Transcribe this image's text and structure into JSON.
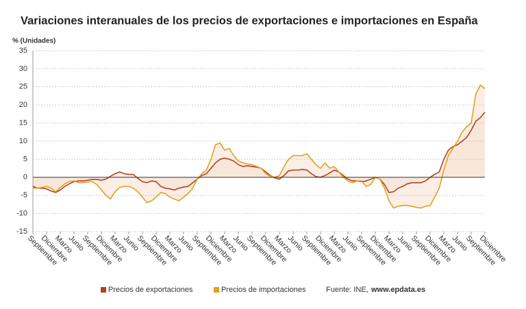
{
  "chart_data": {
    "type": "line",
    "title": "Variaciones interanuales de los precios de exportaciones e importaciones en España",
    "y_label": "% (Unidades)",
    "categories": [
      "Septiembre",
      null,
      null,
      "Diciembre",
      null,
      null,
      "Marzo",
      null,
      null,
      "Junio",
      null,
      null,
      "Septiembre",
      null,
      null,
      "Diciembre",
      null,
      null,
      "Marzo",
      null,
      null,
      "Junio",
      null,
      null,
      "Septiembre",
      null,
      null,
      "Diciembre",
      null,
      null,
      "Marzo",
      null,
      null,
      "Junio",
      null,
      null,
      "Septiembre",
      null,
      null,
      "Diciembre",
      null,
      null,
      "Marzo",
      null,
      null,
      "Junio",
      null,
      null,
      "Septiembre",
      null,
      null,
      "Diciembre",
      null,
      null,
      "Marzo",
      null,
      null,
      "Junio",
      null,
      null,
      "Septiembre",
      null,
      null,
      "Diciembre",
      null,
      null,
      "Marzo",
      null,
      null,
      "Junio",
      null,
      null,
      "Septiembre",
      null,
      null,
      "Diciembre",
      null,
      null,
      "Marzo",
      null,
      null,
      "Junio",
      null,
      null,
      "Septiembre",
      null,
      null,
      "Diciembre",
      null,
      null,
      "Marzo",
      null,
      null,
      "Junio",
      null,
      null,
      "Septiembre",
      null,
      null,
      "Diciembre"
    ],
    "series": [
      {
        "name": "Precios de exportaciones",
        "color": "#b5401d",
        "values": [
          -2.5,
          -3,
          -3,
          -3.2,
          -3.8,
          -4.2,
          -3.5,
          -2.5,
          -1.8,
          -1.2,
          -1,
          -1,
          -0.8,
          -0.6,
          -0.6,
          -0.8,
          -0.5,
          0.3,
          1,
          1.5,
          1,
          0.8,
          0.8,
          -0.3,
          -1.2,
          -1.5,
          -1,
          -1.2,
          -2.5,
          -3,
          -3.2,
          -3.5,
          -3,
          -2.7,
          -2.5,
          -1.5,
          -0.5,
          0.5,
          1,
          2.5,
          4,
          5,
          5.3,
          5,
          4.5,
          3.5,
          3,
          3.2,
          3,
          2.8,
          2.5,
          1.5,
          0.5,
          -0.2,
          -0.5,
          0.5,
          1.8,
          2,
          2,
          2.2,
          2,
          1,
          0.2,
          0,
          0.5,
          1.2,
          2,
          1.5,
          0.5,
          -0.5,
          -1,
          -1,
          -1.2,
          -1,
          -0.5,
          0,
          -0.5,
          -2,
          -4.2,
          -4,
          -3,
          -2.5,
          -1.8,
          -1.5,
          -1.5,
          -1.5,
          -1,
          0,
          0.8,
          1.5,
          5,
          7.5,
          8.5,
          9,
          10,
          11,
          13,
          15.5,
          16.5,
          18
        ]
      },
      {
        "name": "Precios de importaciones",
        "color": "#e0a020",
        "values": [
          -3,
          -3,
          -2.8,
          -2.5,
          -3,
          -4,
          -2.8,
          -1.8,
          -1.2,
          -1,
          -1.5,
          -1.5,
          -1.3,
          -1.2,
          -2,
          -3.5,
          -5,
          -6,
          -4,
          -2.8,
          -2.5,
          -2.5,
          -3,
          -4,
          -5.5,
          -7,
          -6.5,
          -5.5,
          -4.2,
          -4.5,
          -5.5,
          -6,
          -6.5,
          -5.5,
          -4.5,
          -3,
          -0.5,
          1,
          2,
          5,
          9,
          9.5,
          7.5,
          8,
          6,
          4.5,
          4,
          3.7,
          3.5,
          3,
          2.5,
          1,
          0.3,
          0,
          0.5,
          3,
          5,
          6,
          6,
          6,
          6.5,
          5,
          3.5,
          2.5,
          4,
          2.5,
          3,
          1.5,
          0,
          -1,
          -1.5,
          -1,
          -1,
          -2.5,
          -2,
          0,
          -0.5,
          -3,
          -6.5,
          -8.5,
          -8,
          -7.8,
          -7.8,
          -8,
          -8.3,
          -8.5,
          -8,
          -7.8,
          -5.5,
          -3,
          2,
          6,
          8,
          10,
          12.5,
          14,
          15,
          23,
          25.5,
          24.5
        ]
      }
    ],
    "area_color": "#f7e2d3",
    "ylim": [
      -15,
      35
    ],
    "yticks": [
      -15,
      -10,
      -5,
      0,
      5,
      10,
      15,
      20,
      25,
      30,
      35
    ],
    "grid": true,
    "source": {
      "label": "Fuente: INE,",
      "site": "www.epdata.es"
    }
  }
}
